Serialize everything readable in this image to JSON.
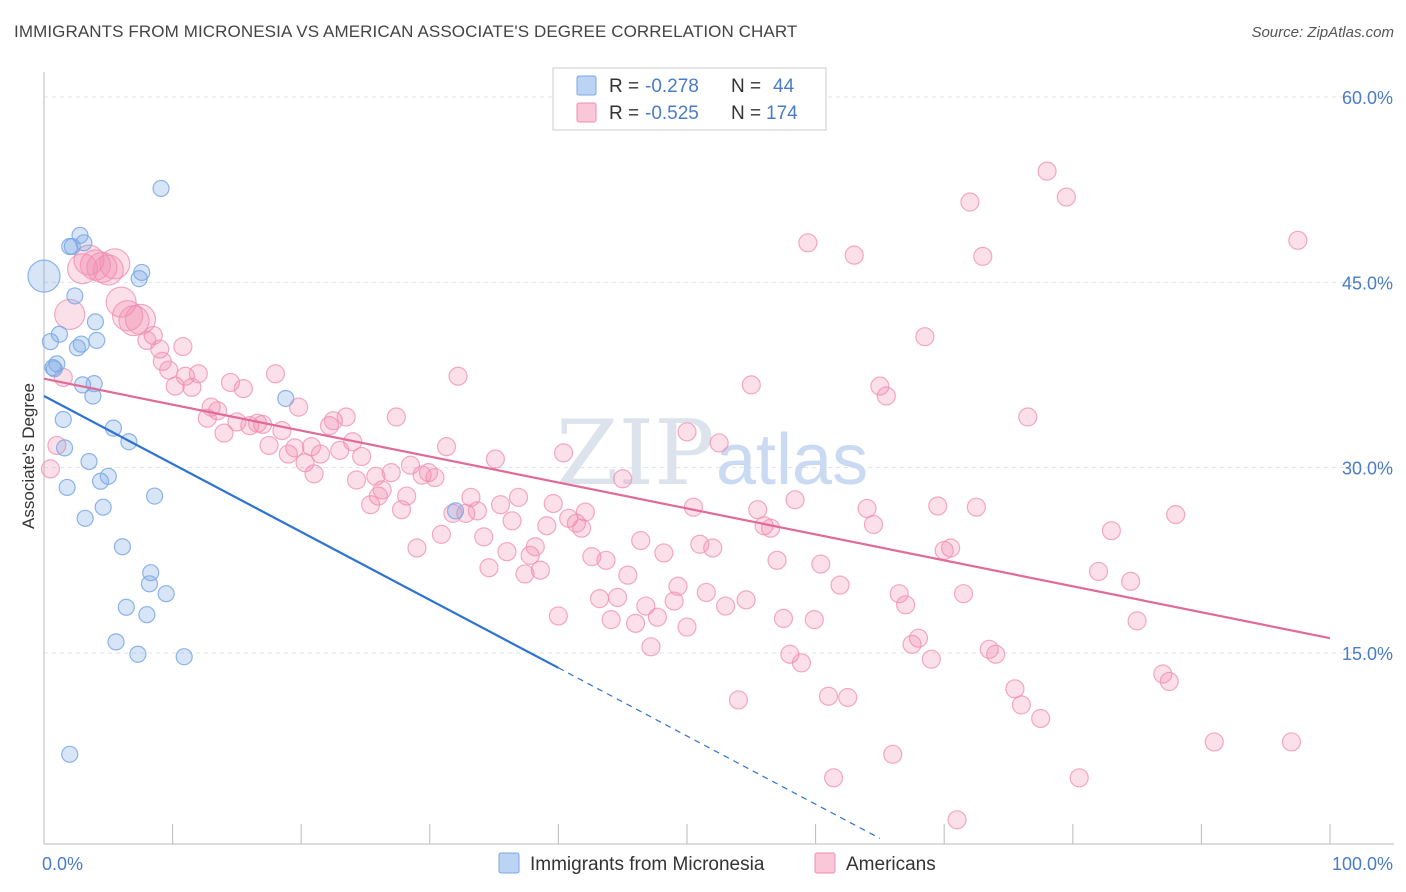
{
  "title": "IMMIGRANTS FROM MICRONESIA VS AMERICAN ASSOCIATE'S DEGREE CORRELATION CHART",
  "source": "Source: ZipAtlas.com",
  "watermark": {
    "zip": "ZIP",
    "atlas": "atlas"
  },
  "colors": {
    "blue": "#7aa8e6",
    "blue_line": "#2e72d2",
    "pink": "#f08db0",
    "pink_line": "#e06b97",
    "tick": "#4a7cc9"
  },
  "legend": {
    "r_label": "R =",
    "n_label": "N =",
    "rows": [
      {
        "r": "-0.278",
        "n": "44"
      },
      {
        "r": "-0.525",
        "n": "174"
      }
    ]
  },
  "bottom_legend": [
    "Immigrants from Micronesia",
    "Americans"
  ],
  "chart_data": {
    "type": "scatter",
    "title": "IMMIGRANTS FROM MICRONESIA VS AMERICAN ASSOCIATE'S DEGREE CORRELATION CHART",
    "xlabel": "",
    "ylabel": "Associate's Degree",
    "xlim": [
      0,
      100
    ],
    "ylim": [
      0,
      60
    ],
    "x_tick_labels": [
      "0.0%",
      "100.0%"
    ],
    "y_ticks": [
      15,
      30,
      45,
      60
    ],
    "y_tick_labels": [
      "15.0%",
      "30.0%",
      "45.0%",
      "60.0%"
    ],
    "grid": true,
    "legend_position": "top-center",
    "series": [
      {
        "name": "Immigrants from Micronesia",
        "r": -0.278,
        "n": 44,
        "trend": {
          "x0": 0,
          "y0": 35.8,
          "x1": 40,
          "y1": 13.8,
          "dashed_to_x": 65,
          "dashed_to_y": 0
        },
        "points": [
          [
            0,
            45.5
          ],
          [
            0.5,
            40.2
          ],
          [
            0.7,
            38.1
          ],
          [
            1,
            38.4
          ],
          [
            1.2,
            40.8
          ],
          [
            1.5,
            33.9
          ],
          [
            1.6,
            31.6
          ],
          [
            1.8,
            28.4
          ],
          [
            2,
            47.9
          ],
          [
            2.2,
            47.9
          ],
          [
            2.4,
            43.9
          ],
          [
            2.6,
            39.7
          ],
          [
            2.8,
            48.8
          ],
          [
            3,
            36.7
          ],
          [
            3.1,
            48.2
          ],
          [
            3.2,
            25.9
          ],
          [
            3.5,
            30.5
          ],
          [
            3.8,
            35.8
          ],
          [
            3.9,
            36.8
          ],
          [
            4,
            41.8
          ],
          [
            4.1,
            40.3
          ],
          [
            4.4,
            28.9
          ],
          [
            4.6,
            26.8
          ],
          [
            5,
            29.3
          ],
          [
            5.4,
            33.2
          ],
          [
            5.6,
            15.9
          ],
          [
            6.1,
            23.6
          ],
          [
            6.4,
            18.7
          ],
          [
            6.6,
            32.1
          ],
          [
            7.3,
            14.9
          ],
          [
            7.4,
            45.3
          ],
          [
            7.6,
            45.8
          ],
          [
            8,
            18.1
          ],
          [
            8.2,
            20.6
          ],
          [
            8.3,
            21.5
          ],
          [
            8.6,
            27.7
          ],
          [
            9.1,
            52.6
          ],
          [
            9.5,
            19.8
          ],
          [
            10.9,
            14.7
          ],
          [
            18.8,
            35.6
          ],
          [
            2,
            6.8
          ],
          [
            32,
            26.5
          ],
          [
            2.9,
            40.0
          ],
          [
            0.8,
            38.0
          ]
        ]
      },
      {
        "name": "Americans",
        "r": -0.525,
        "n": 174,
        "trend": {
          "x0": 0,
          "y0": 37.2,
          "x1": 100,
          "y1": 16.2
        },
        "points": [
          [
            0.5,
            29.9
          ],
          [
            1,
            31.8
          ],
          [
            1.5,
            37.3
          ],
          [
            2,
            42.4
          ],
          [
            3,
            46.1
          ],
          [
            3.5,
            46.8
          ],
          [
            4,
            46.4
          ],
          [
            4.5,
            46.2
          ],
          [
            5,
            46.0
          ],
          [
            5.5,
            46.5
          ],
          [
            6,
            43.4
          ],
          [
            6.5,
            42.3
          ],
          [
            7,
            41.9
          ],
          [
            7.5,
            42.0
          ],
          [
            8,
            40.3
          ],
          [
            8.5,
            40.7
          ],
          [
            9,
            39.6
          ],
          [
            9.2,
            38.6
          ],
          [
            9.7,
            37.9
          ],
          [
            10.2,
            36.6
          ],
          [
            10.8,
            39.8
          ],
          [
            11,
            37.4
          ],
          [
            11.5,
            36.5
          ],
          [
            12,
            37.6
          ],
          [
            12.7,
            34.0
          ],
          [
            13,
            34.9
          ],
          [
            13.5,
            34.6
          ],
          [
            14,
            32.8
          ],
          [
            14.5,
            36.9
          ],
          [
            15,
            33.7
          ],
          [
            15.5,
            36.4
          ],
          [
            16,
            33.4
          ],
          [
            16.6,
            33.6
          ],
          [
            17,
            33.5
          ],
          [
            17.5,
            31.8
          ],
          [
            18,
            37.6
          ],
          [
            18.5,
            33.0
          ],
          [
            19,
            31.1
          ],
          [
            19.5,
            31.6
          ],
          [
            19.8,
            34.9
          ],
          [
            20.3,
            30.4
          ],
          [
            20.8,
            31.7
          ],
          [
            21,
            29.5
          ],
          [
            21.5,
            31.1
          ],
          [
            22.2,
            33.4
          ],
          [
            22.5,
            33.8
          ],
          [
            23,
            31.4
          ],
          [
            23.5,
            34.1
          ],
          [
            24,
            32.1
          ],
          [
            24.3,
            29.0
          ],
          [
            24.7,
            30.9
          ],
          [
            25.4,
            27.0
          ],
          [
            25.8,
            29.3
          ],
          [
            26,
            27.7
          ],
          [
            26.3,
            28.2
          ],
          [
            27,
            29.6
          ],
          [
            27.4,
            34.1
          ],
          [
            27.8,
            26.6
          ],
          [
            28.2,
            27.7
          ],
          [
            28.5,
            30.2
          ],
          [
            29,
            23.5
          ],
          [
            29.4,
            29.4
          ],
          [
            29.9,
            29.6
          ],
          [
            30.4,
            29.2
          ],
          [
            30.9,
            24.6
          ],
          [
            31.3,
            31.7
          ],
          [
            31.8,
            26.3
          ],
          [
            32.2,
            37.4
          ],
          [
            32.8,
            26.3
          ],
          [
            33.2,
            27.6
          ],
          [
            33.7,
            26.5
          ],
          [
            34.2,
            24.4
          ],
          [
            34.6,
            21.9
          ],
          [
            35.1,
            30.7
          ],
          [
            35.5,
            27.0
          ],
          [
            36,
            23.2
          ],
          [
            36.4,
            25.7
          ],
          [
            36.9,
            27.6
          ],
          [
            37.4,
            21.4
          ],
          [
            37.8,
            22.9
          ],
          [
            38.2,
            23.6
          ],
          [
            38.6,
            21.7
          ],
          [
            39.1,
            25.3
          ],
          [
            39.6,
            27.1
          ],
          [
            40,
            18.0
          ],
          [
            40.4,
            31.2
          ],
          [
            40.8,
            25.9
          ],
          [
            41.4,
            25.5
          ],
          [
            41.8,
            25.1
          ],
          [
            42.1,
            26.4
          ],
          [
            42.6,
            22.8
          ],
          [
            43.2,
            19.4
          ],
          [
            43.7,
            22.5
          ],
          [
            44.1,
            17.7
          ],
          [
            44.6,
            19.5
          ],
          [
            45,
            29.1
          ],
          [
            45.4,
            21.3
          ],
          [
            46,
            17.4
          ],
          [
            46.4,
            24.1
          ],
          [
            46.8,
            18.8
          ],
          [
            47.2,
            15.5
          ],
          [
            47.7,
            17.9
          ],
          [
            48.2,
            23.1
          ],
          [
            49,
            19.2
          ],
          [
            49.3,
            20.4
          ],
          [
            50,
            17.1
          ],
          [
            50,
            32.9
          ],
          [
            50.5,
            26.8
          ],
          [
            51,
            23.8
          ],
          [
            51.5,
            19.9
          ],
          [
            52,
            23.5
          ],
          [
            52.5,
            32.0
          ],
          [
            53,
            18.8
          ],
          [
            54,
            11.2
          ],
          [
            54.6,
            19.3
          ],
          [
            55,
            36.7
          ],
          [
            55.5,
            26.6
          ],
          [
            56,
            25.3
          ],
          [
            56.5,
            25.1
          ],
          [
            57,
            22.5
          ],
          [
            57.5,
            17.8
          ],
          [
            58,
            14.9
          ],
          [
            58.4,
            27.4
          ],
          [
            58.9,
            14.2
          ],
          [
            59.4,
            48.2
          ],
          [
            59.9,
            17.7
          ],
          [
            60.4,
            22.2
          ],
          [
            61,
            11.5
          ],
          [
            61.4,
            4.9
          ],
          [
            61.9,
            20.5
          ],
          [
            62.5,
            11.4
          ],
          [
            63,
            47.2
          ],
          [
            64,
            26.7
          ],
          [
            64.5,
            25.4
          ],
          [
            65,
            36.6
          ],
          [
            65.5,
            35.8
          ],
          [
            66,
            6.8
          ],
          [
            66.5,
            19.8
          ],
          [
            67,
            18.9
          ],
          [
            67.5,
            15.7
          ],
          [
            68,
            16.2
          ],
          [
            68.5,
            40.6
          ],
          [
            69,
            14.5
          ],
          [
            69.5,
            26.9
          ],
          [
            70,
            23.3
          ],
          [
            70.5,
            23.5
          ],
          [
            71,
            1.5
          ],
          [
            71.5,
            19.8
          ],
          [
            72,
            51.5
          ],
          [
            72.5,
            26.8
          ],
          [
            73,
            47.1
          ],
          [
            73.5,
            15.3
          ],
          [
            74,
            14.9
          ],
          [
            75.5,
            12.1
          ],
          [
            76,
            10.8
          ],
          [
            76.5,
            34.1
          ],
          [
            77.5,
            9.7
          ],
          [
            78,
            54.0
          ],
          [
            79.5,
            51.9
          ],
          [
            80.5,
            4.9
          ],
          [
            82,
            21.6
          ],
          [
            83,
            24.9
          ],
          [
            85,
            17.6
          ],
          [
            87,
            13.3
          ],
          [
            87.5,
            12.7
          ],
          [
            88,
            26.2
          ],
          [
            91,
            7.8
          ],
          [
            97,
            7.8
          ],
          [
            97.5,
            48.4
          ],
          [
            84.5,
            20.8
          ]
        ]
      }
    ]
  }
}
